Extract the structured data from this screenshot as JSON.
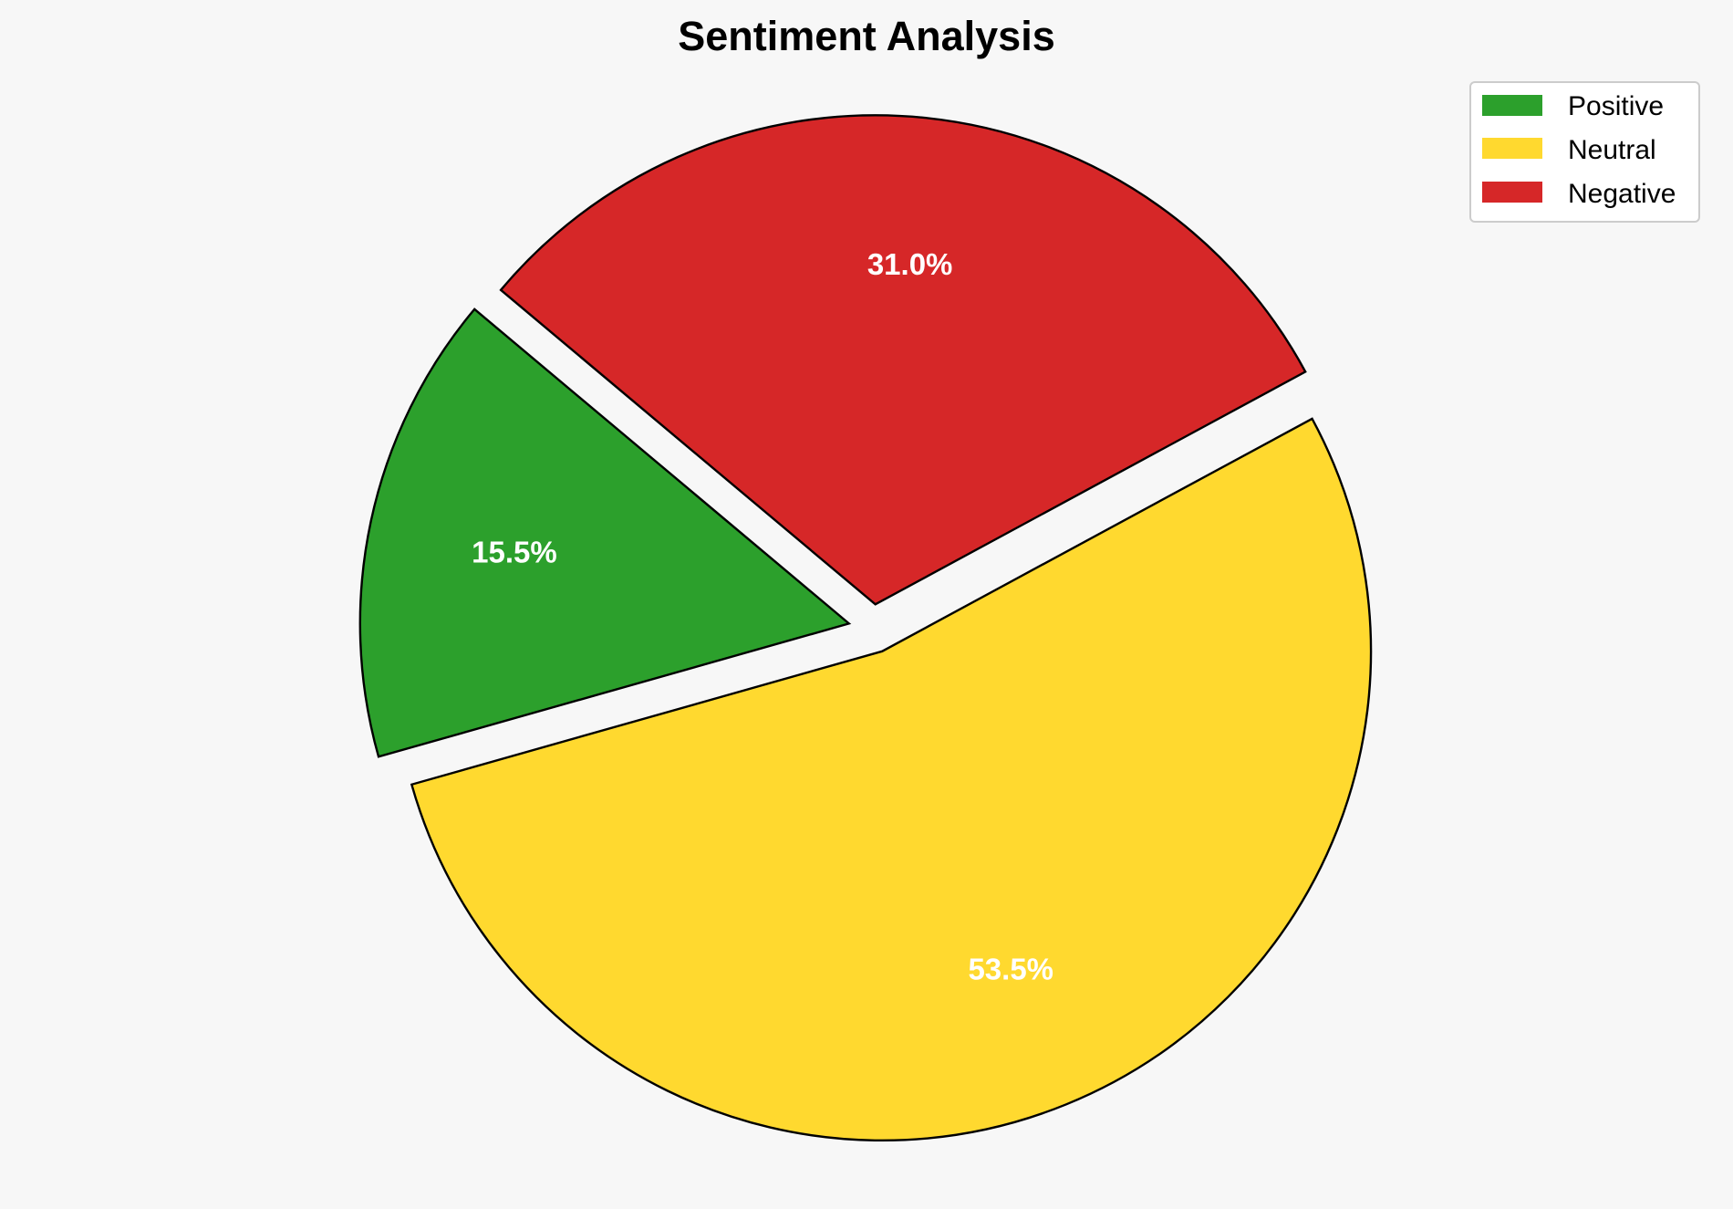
{
  "chart_data": {
    "type": "pie",
    "title": "Sentiment Analysis",
    "categories": [
      "Positive",
      "Neutral",
      "Negative"
    ],
    "values": [
      15.5,
      53.5,
      31.0
    ],
    "labels": [
      "15.5%",
      "53.5%",
      "31.0%"
    ],
    "colors": [
      "#2ca02c",
      "#ffd92f",
      "#d62728"
    ],
    "explode": [
      0.05,
      0.05,
      0.05
    ],
    "start_angle": 140,
    "edge_color": "#000000",
    "legend": {
      "placement": "top-right",
      "entries": [
        "Positive",
        "Neutral",
        "Negative"
      ]
    }
  }
}
